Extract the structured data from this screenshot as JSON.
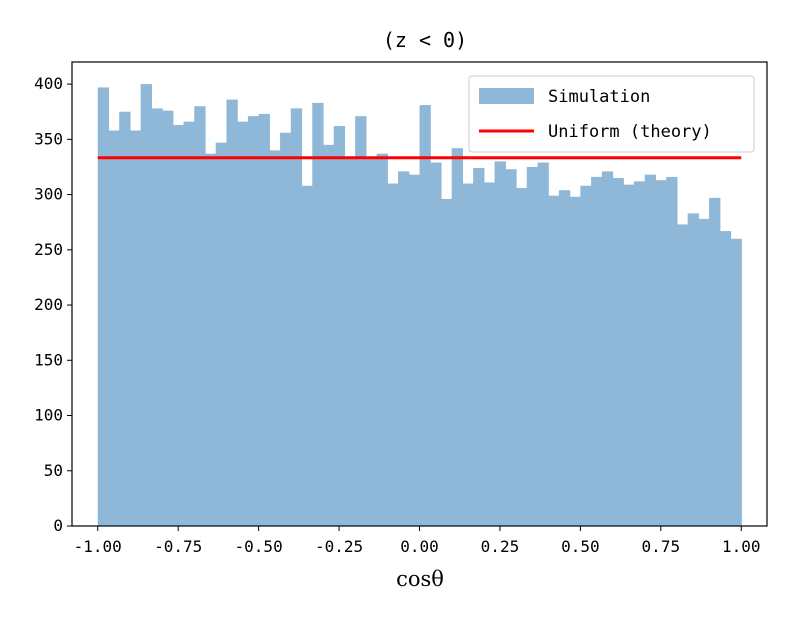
{
  "chart_data": {
    "type": "bar",
    "title": "(z < 0)",
    "xlabel": "cosθ",
    "ylabel": "",
    "xlim": [
      -1.08,
      1.08
    ],
    "ylim": [
      0,
      420
    ],
    "bins": [
      -1.0,
      1.0
    ],
    "xticks": [
      -1.0,
      -0.75,
      -0.5,
      -0.25,
      0.0,
      0.25,
      0.5,
      0.75,
      1.0
    ],
    "xtick_labels": [
      "-1.00",
      "-0.75",
      "-0.50",
      "-0.25",
      "0.00",
      "0.25",
      "0.50",
      "0.75",
      "1.00"
    ],
    "yticks": [
      0,
      50,
      100,
      150,
      200,
      250,
      300,
      350,
      400
    ],
    "ytick_labels": [
      "0",
      "50",
      "100",
      "150",
      "200",
      "250",
      "300",
      "350",
      "400"
    ],
    "legend_position": "top-right",
    "series": [
      {
        "name": "Simulation",
        "kind": "histogram",
        "color": "#8fb8d8",
        "values": [
          397,
          358,
          375,
          358,
          400,
          378,
          376,
          363,
          366,
          380,
          337,
          347,
          386,
          366,
          371,
          373,
          340,
          356,
          378,
          308,
          383,
          345,
          362,
          334,
          371,
          333,
          337,
          310,
          321,
          318,
          381,
          329,
          296,
          342,
          310,
          324,
          311,
          330,
          323,
          306,
          325,
          329,
          299,
          304,
          298,
          308,
          316,
          321,
          315,
          309,
          312,
          318,
          313,
          316,
          273,
          283,
          278,
          297,
          267,
          260
        ]
      },
      {
        "name": "Uniform (theory)",
        "kind": "line",
        "color": "#ff0000",
        "x": [
          -1.0,
          1.0
        ],
        "y": [
          333.3,
          333.3
        ]
      }
    ]
  }
}
